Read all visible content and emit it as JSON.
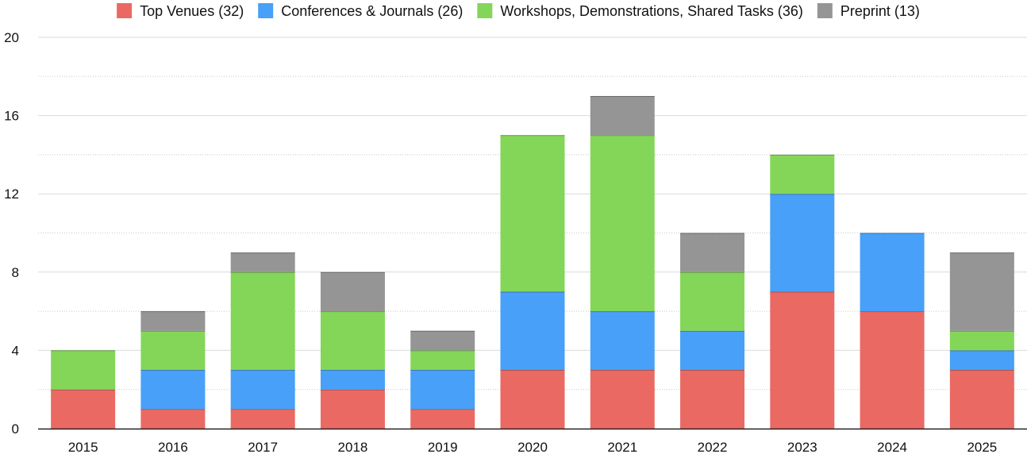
{
  "chart_data": {
    "type": "bar",
    "stacked": true,
    "categories": [
      "2015",
      "2016",
      "2017",
      "2018",
      "2019",
      "2020",
      "2021",
      "2022",
      "2023",
      "2024",
      "2025"
    ],
    "series": [
      {
        "name": "Top Venues (32)",
        "color": "#EA6A63",
        "values": [
          2,
          1,
          1,
          2,
          1,
          3,
          3,
          3,
          7,
          6,
          3
        ]
      },
      {
        "name": "Conferences & Journals (26)",
        "color": "#48A0F8",
        "values": [
          0,
          2,
          2,
          1,
          2,
          4,
          3,
          2,
          5,
          4,
          1
        ]
      },
      {
        "name": "Workshops, Demonstrations, Shared Tasks (36)",
        "color": "#84D658",
        "values": [
          2,
          2,
          5,
          3,
          1,
          8,
          9,
          3,
          2,
          0,
          1
        ]
      },
      {
        "name": "Preprint (13)",
        "color": "#959595",
        "values": [
          0,
          1,
          1,
          2,
          1,
          0,
          2,
          2,
          0,
          0,
          4
        ]
      }
    ],
    "ylim": [
      0,
      20
    ],
    "yticks": [
      "0",
      "4",
      "8",
      "12",
      "16",
      "20"
    ],
    "minor_grid": true,
    "legend_position": "top",
    "title": "",
    "xlabel": "",
    "ylabel": ""
  }
}
